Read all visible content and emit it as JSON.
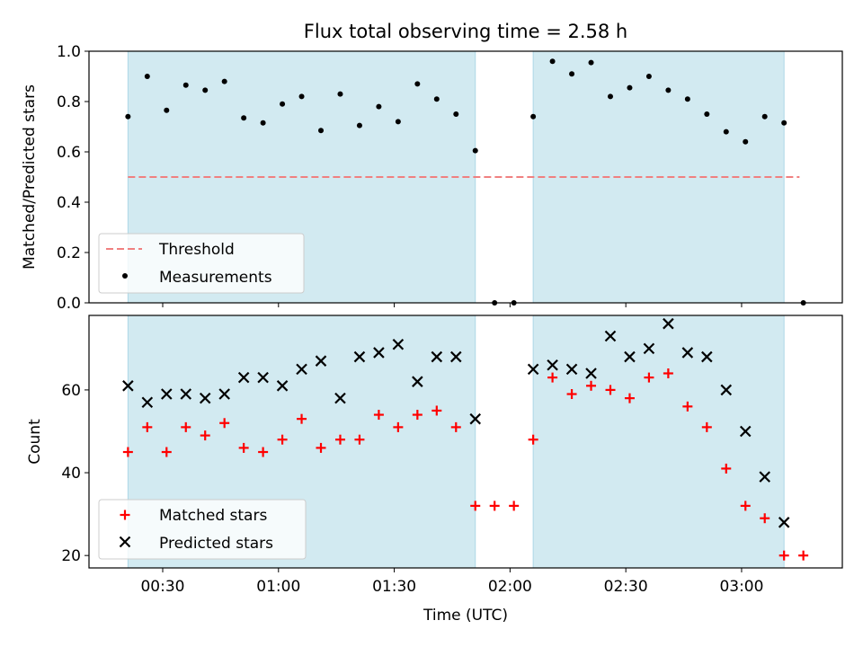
{
  "chart_data": [
    {
      "type": "scatter",
      "title": "Flux total observing time = 2.58 h",
      "ylabel": "Matched/Predicted stars",
      "ylim": [
        0,
        1.0
      ],
      "yticks": [
        "0.0",
        "0.2",
        "0.4",
        "0.6",
        "0.8",
        "1.0"
      ],
      "grid": false,
      "legend": "lower-left",
      "shaded_intervals": [
        [
          "00:21",
          "01:51"
        ],
        [
          "02:06",
          "03:11"
        ]
      ],
      "shade_color": "#add8e6",
      "series": [
        {
          "name": "Threshold",
          "kind": "dashed-line",
          "color": "#f08080",
          "x": [
            "00:21",
            "03:15"
          ],
          "values": [
            0.5,
            0.5
          ]
        },
        {
          "name": "Measurements",
          "kind": "points",
          "color": "#000000",
          "x": [
            "00:21",
            "00:26",
            "00:31",
            "00:36",
            "00:41",
            "00:46",
            "00:51",
            "00:56",
            "01:01",
            "01:06",
            "01:11",
            "01:16",
            "01:21",
            "01:26",
            "01:31",
            "01:36",
            "01:41",
            "01:46",
            "01:51",
            "01:56",
            "02:01",
            "02:06",
            "02:11",
            "02:16",
            "02:21",
            "02:26",
            "02:31",
            "02:36",
            "02:41",
            "02:46",
            "02:51",
            "02:56",
            "03:01",
            "03:06",
            "03:11",
            "03:16"
          ],
          "values": [
            0.74,
            0.9,
            0.765,
            0.865,
            0.845,
            0.88,
            0.735,
            0.715,
            0.79,
            0.82,
            0.685,
            0.83,
            0.705,
            0.78,
            0.72,
            0.87,
            0.81,
            0.75,
            0.605,
            0.0,
            0.0,
            0.74,
            0.96,
            0.91,
            0.955,
            0.82,
            0.855,
            0.9,
            0.845,
            0.81,
            0.75,
            0.68,
            0.64,
            0.74,
            0.715,
            0.0
          ]
        }
      ]
    },
    {
      "type": "scatter",
      "xlabel": "Time (UTC)",
      "ylabel": "Count",
      "ylim": [
        17,
        78
      ],
      "yticks": [
        "20",
        "40",
        "60"
      ],
      "xticks": [
        "00:30",
        "01:00",
        "01:30",
        "02:00",
        "02:30",
        "03:00"
      ],
      "grid": false,
      "legend": "lower-left",
      "series": [
        {
          "name": "Matched stars",
          "marker": "plus",
          "color": "#ff0000",
          "x": [
            "00:21",
            "00:26",
            "00:31",
            "00:36",
            "00:41",
            "00:46",
            "00:51",
            "00:56",
            "01:01",
            "01:06",
            "01:11",
            "01:16",
            "01:21",
            "01:26",
            "01:31",
            "01:36",
            "01:41",
            "01:46",
            "01:51",
            "01:56",
            "02:01",
            "02:06",
            "02:11",
            "02:16",
            "02:21",
            "02:26",
            "02:31",
            "02:36",
            "02:41",
            "02:46",
            "02:51",
            "02:56",
            "03:01",
            "03:06",
            "03:11",
            "03:16"
          ],
          "values": [
            45,
            51,
            45,
            51,
            49,
            52,
            46,
            45,
            48,
            53,
            46,
            48,
            48,
            54,
            51,
            54,
            55,
            51,
            32,
            32,
            32,
            48,
            63,
            59,
            61,
            60,
            58,
            63,
            64,
            56,
            51,
            41,
            32,
            29,
            20,
            20
          ]
        },
        {
          "name": "Predicted stars",
          "marker": "x",
          "color": "#000000",
          "x": [
            "00:21",
            "00:26",
            "00:31",
            "00:36",
            "00:41",
            "00:46",
            "00:51",
            "00:56",
            "01:01",
            "01:06",
            "01:11",
            "01:16",
            "01:21",
            "01:26",
            "01:31",
            "01:36",
            "01:41",
            "01:46",
            "01:51",
            "02:06",
            "02:11",
            "02:16",
            "02:21",
            "02:26",
            "02:31",
            "02:36",
            "02:41",
            "02:46",
            "02:51",
            "02:56",
            "03:01",
            "03:06",
            "03:11"
          ],
          "values": [
            61,
            57,
            59,
            59,
            58,
            59,
            63,
            63,
            61,
            65,
            67,
            58,
            68,
            69,
            71,
            62,
            68,
            68,
            53,
            65,
            66,
            65,
            64,
            73,
            68,
            70,
            76,
            69,
            68,
            60,
            50,
            39,
            28
          ]
        }
      ]
    }
  ]
}
